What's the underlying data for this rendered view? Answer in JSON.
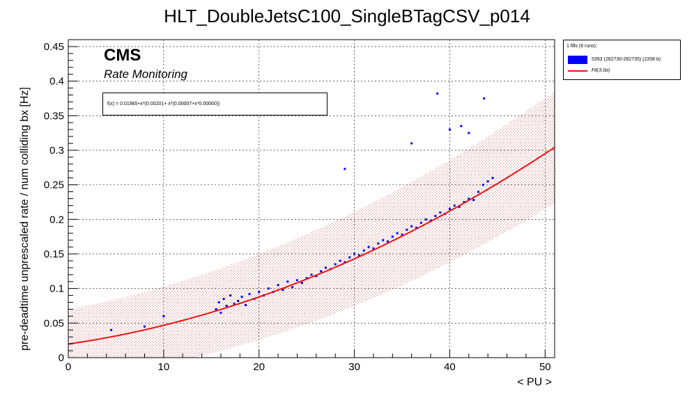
{
  "chart_data": {
    "type": "scatter",
    "title": "HLT_DoubleJetsC100_SingleBTagCSV_p014",
    "xlabel": "< PU >",
    "ylabel": "pre-deadtime unprescaled rate / num colliding bx [Hz]",
    "xlim": [
      0,
      51
    ],
    "ylim": [
      0,
      0.46
    ],
    "x_ticks": [
      "0",
      "10",
      "20",
      "30",
      "40",
      "50"
    ],
    "y_ticks": [
      "0",
      "0.05",
      "0.1",
      "0.15",
      "0.2",
      "0.25",
      "0.3",
      "0.35",
      "0.4",
      "0.45"
    ],
    "grid": true,
    "legend_position": "outside-top-right",
    "series": [
      {
        "name": "5393 (282730-282735) (2208 b)",
        "kind": "points",
        "color": "#0000ff",
        "x": [
          15.5,
          15.8,
          16.0,
          16.3,
          16.6,
          17.0,
          17.4,
          17.8,
          18.2,
          18.6,
          19.0,
          19.5,
          20.0,
          20.5,
          21.0,
          21.5,
          22.0,
          22.5,
          23.0,
          23.5,
          24.0,
          24.5,
          25.0,
          25.5,
          26.0,
          26.5,
          27.0,
          27.5,
          28.0,
          28.5,
          29.0,
          29.5,
          30.0,
          30.5,
          31.0,
          31.5,
          32.0,
          32.5,
          33.0,
          33.5,
          34.0,
          34.5,
          35.0,
          35.5,
          36.0,
          36.5,
          37.0,
          37.5,
          38.0,
          38.5,
          39.0,
          39.5,
          40.0,
          40.5,
          41.0,
          41.5,
          42.0,
          42.5,
          43.0,
          43.5,
          44.0,
          44.5,
          38.7,
          43.6,
          36.0,
          29.0,
          40.0,
          41.2,
          42.0,
          4.5,
          8.0,
          10.0
        ],
        "y": [
          0.07,
          0.08,
          0.065,
          0.085,
          0.075,
          0.09,
          0.078,
          0.082,
          0.088,
          0.076,
          0.092,
          0.085,
          0.095,
          0.09,
          0.1,
          0.095,
          0.105,
          0.098,
          0.11,
          0.102,
          0.112,
          0.108,
          0.115,
          0.12,
          0.118,
          0.125,
          0.13,
          0.128,
          0.135,
          0.14,
          0.138,
          0.145,
          0.15,
          0.148,
          0.155,
          0.16,
          0.158,
          0.165,
          0.17,
          0.168,
          0.175,
          0.18,
          0.178,
          0.185,
          0.19,
          0.188,
          0.195,
          0.2,
          0.198,
          0.205,
          0.21,
          0.208,
          0.215,
          0.22,
          0.218,
          0.225,
          0.23,
          0.228,
          0.24,
          0.25,
          0.255,
          0.26,
          0.382,
          0.375,
          0.31,
          0.273,
          0.33,
          0.335,
          0.325,
          0.04,
          0.045,
          0.06
        ]
      },
      {
        "name": "Fit(3.0σ)",
        "kind": "fit",
        "color": "#ee1111"
      }
    ],
    "fit_function": {
      "c0": 0.01965,
      "c1": 0.00201,
      "c2": 7e-05,
      "c3": 0.0,
      "sigma_band": 0.05
    }
  },
  "legend": {
    "header": "1 fills (6 runs):",
    "entries": [
      {
        "label": "5393 (282730-282735) (2208 b)"
      },
      {
        "label": "Fit(3.0σ)"
      }
    ]
  },
  "fit_box": {
    "text": "f(x) = 0.01965+x*(0.00201+ x*(0.00007+x*0.00000))"
  },
  "cms": {
    "label": "CMS",
    "sublabel": "Rate Monitoring"
  }
}
